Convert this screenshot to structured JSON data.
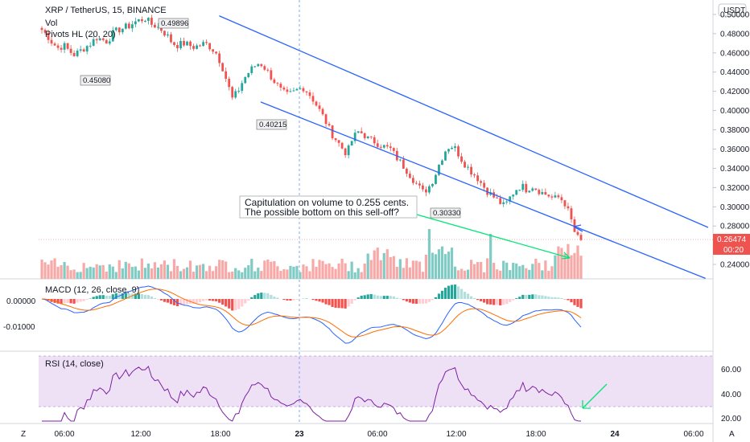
{
  "title": {
    "symbol_line": "XRP / TetherUS, 15, BINANCE",
    "vol": "Vol",
    "pivots": "Pivots HL (20, 20)"
  },
  "currency_badge": "USDT",
  "price_axis_labels": [
    "0.50000",
    "0.48000",
    "0.46000",
    "0.44000",
    "0.42000",
    "0.40000",
    "0.38000",
    "0.36000",
    "0.34000",
    "0.32000",
    "0.30000",
    "0.28000",
    "0.26000",
    "0.24000"
  ],
  "last_price": "0.26474",
  "countdown": "00:20",
  "pivot_labels": [
    "0.49896",
    "0.45080",
    "0.40215",
    "0.30330"
  ],
  "annotation": {
    "line1": "Capitulation on volume to 0.255 cents.",
    "line2": "The possible bottom on this sell-off?"
  },
  "macd": {
    "label": "MACD (12, 26, close, 9)",
    "axis_labels": [
      "0.00000",
      "-0.01000"
    ]
  },
  "rsi": {
    "label": "RSI (14, close)",
    "axis_labels": [
      "60.00",
      "40.00",
      "20.00"
    ],
    "upper_band": 70,
    "lower_band": 30
  },
  "time_axis": [
    "06:00",
    "12:00",
    "18:00",
    "23",
    "06:00",
    "12:00",
    "18:00",
    "24",
    "06:00"
  ],
  "corner_left": "Z",
  "corner_right": "A",
  "colors": {
    "up": "#26a69a",
    "down": "#ef5350",
    "channel": "#2962ff",
    "macd_line": "#2962ff",
    "signal_line": "#ff6d00",
    "rsi_line": "#7b1fa2",
    "rsi_band": "#e1bee7",
    "green_arrow": "#00e676"
  },
  "chart_data": {
    "type": "candlestick",
    "ylim": [
      0.225,
      0.515
    ],
    "close_path": [
      0.484,
      0.478,
      0.47,
      0.465,
      0.468,
      0.462,
      0.458,
      0.462,
      0.466,
      0.47,
      0.476,
      0.474,
      0.472,
      0.48,
      0.484,
      0.486,
      0.488,
      0.492,
      0.494,
      0.496,
      0.49,
      0.488,
      0.484,
      0.478,
      0.47,
      0.468,
      0.47,
      0.468,
      0.466,
      0.468,
      0.47,
      0.466,
      0.46,
      0.448,
      0.43,
      0.412,
      0.42,
      0.432,
      0.44,
      0.446,
      0.45,
      0.444,
      0.436,
      0.428,
      0.42,
      0.416,
      0.418,
      0.422,
      0.424,
      0.418,
      0.41,
      0.4,
      0.39,
      0.378,
      0.37,
      0.362,
      0.355,
      0.37,
      0.378,
      0.376,
      0.37,
      0.368,
      0.365,
      0.362,
      0.36,
      0.352,
      0.345,
      0.338,
      0.33,
      0.322,
      0.315,
      0.32,
      0.33,
      0.345,
      0.358,
      0.364,
      0.36,
      0.35,
      0.342,
      0.336,
      0.33,
      0.322,
      0.315,
      0.31,
      0.305,
      0.3,
      0.31,
      0.318,
      0.322,
      0.318,
      0.322,
      0.318,
      0.314,
      0.312,
      0.308,
      0.31,
      0.304,
      0.29,
      0.27,
      0.264
    ],
    "channel": {
      "upper": [
        [
          0.268,
          0.4985
        ],
        [
          1.0,
          0.2785
        ]
      ],
      "lower": [
        [
          0.33,
          0.409
        ],
        [
          0.996,
          0.2255
        ]
      ]
    }
  }
}
